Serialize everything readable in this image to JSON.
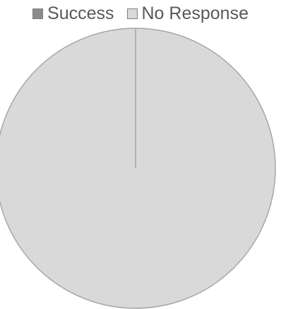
{
  "chart_data": {
    "type": "pie",
    "title": "",
    "categories": [
      "Success",
      "No Response"
    ],
    "values": [
      0,
      100
    ],
    "colors": [
      "#8c8c8c",
      "#d9d9d9"
    ],
    "border_color": "#a6a6a6",
    "legend_position": "top"
  }
}
